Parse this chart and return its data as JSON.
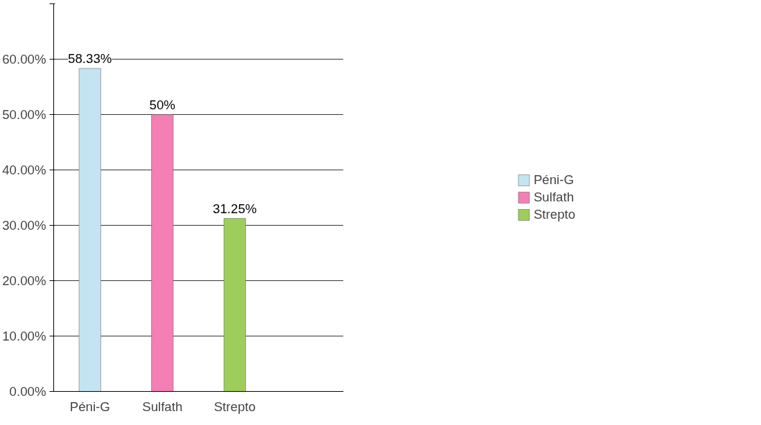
{
  "chart_data": {
    "type": "bar",
    "categories": [
      "Péni-G",
      "Sulfath",
      "Strepto",
      null
    ],
    "series": [
      {
        "name": "Péni-G",
        "color": "#c5e4f2",
        "values": [
          58.33,
          null,
          null,
          null
        ],
        "value_labels": [
          "58.33%",
          null,
          null,
          null
        ]
      },
      {
        "name": "Sulfath",
        "color": "#f47fb4",
        "values": [
          null,
          50,
          null,
          null
        ],
        "value_labels": [
          null,
          "50%",
          null,
          null
        ]
      },
      {
        "name": "Strepto",
        "color": "#9fcd5c",
        "values": [
          null,
          null,
          31.25,
          null
        ],
        "value_labels": [
          null,
          null,
          "31.25%",
          null
        ]
      }
    ],
    "ylim": [
      0,
      70
    ],
    "yticks": [
      {
        "value": 0,
        "label": "0.00%"
      },
      {
        "value": 10,
        "label": "10.00%"
      },
      {
        "value": 20,
        "label": "20.00%"
      },
      {
        "value": 30,
        "label": "30.00%"
      },
      {
        "value": 40,
        "label": "40.00%"
      },
      {
        "value": 50,
        "label": "50.00%"
      },
      {
        "value": 60,
        "label": "60.00%"
      },
      {
        "value": 70,
        "label": null
      }
    ],
    "grid": "y",
    "legend": "right"
  }
}
